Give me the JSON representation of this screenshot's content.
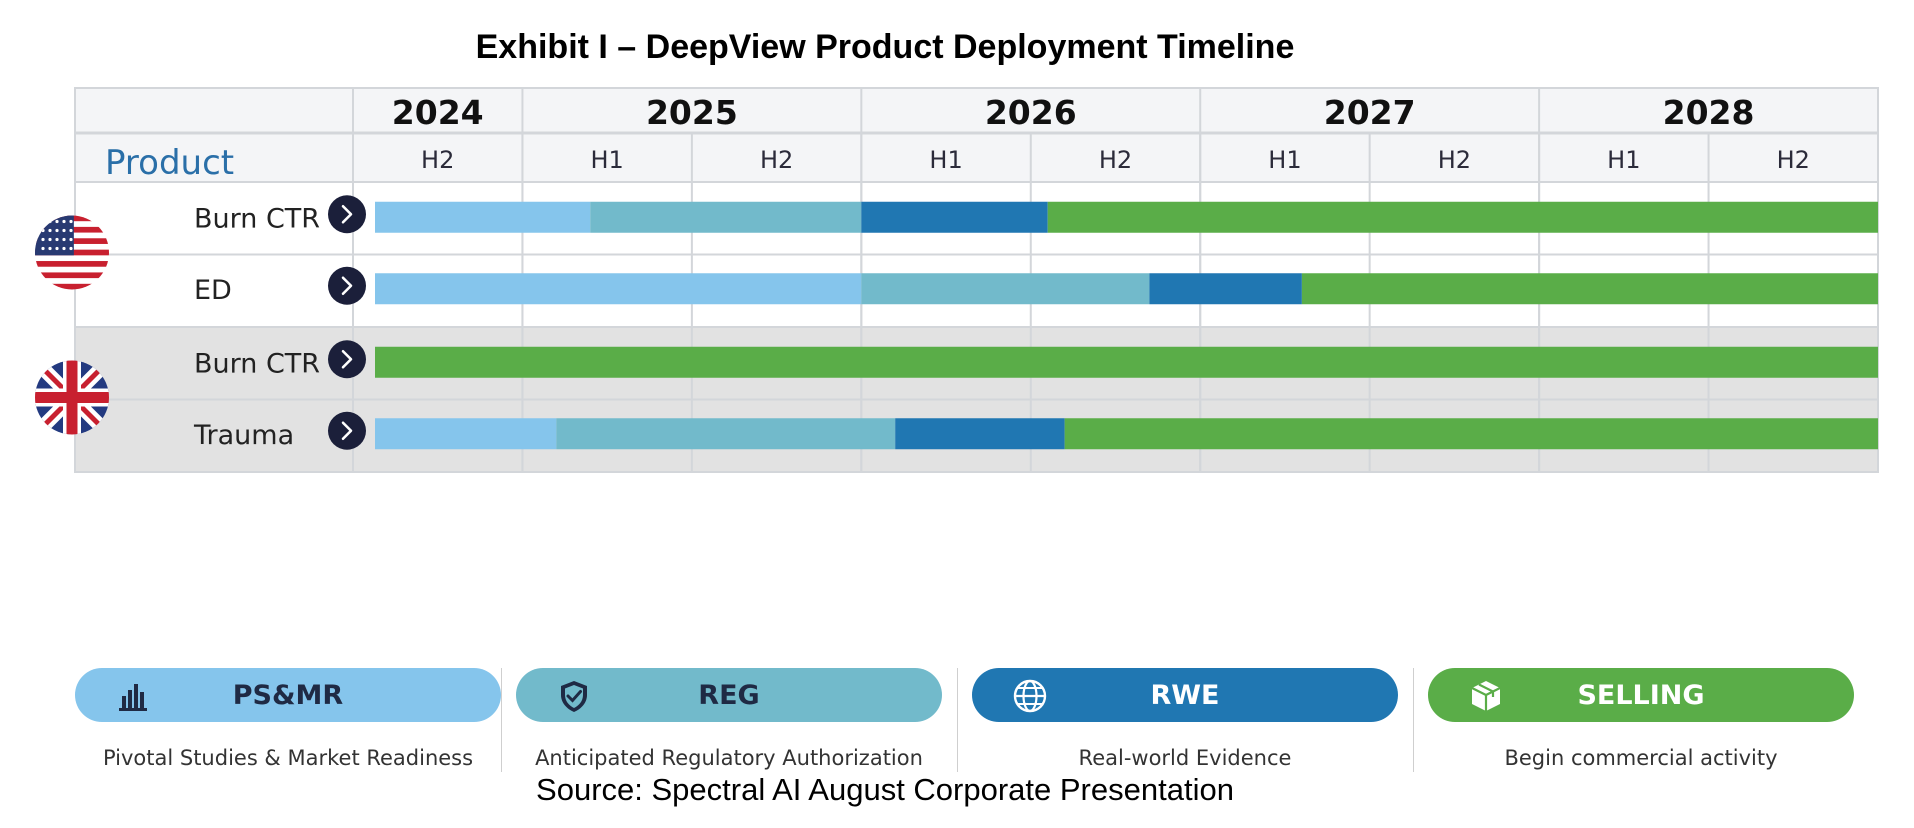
{
  "title": "Exhibit I – DeepView Product Deployment Timeline",
  "source": "Source: Spectral AI August Corporate Presentation",
  "chart_data": {
    "type": "gantt",
    "product_header": "Product",
    "years": [
      {
        "label": "2024",
        "halves": [
          "H2"
        ]
      },
      {
        "label": "2025",
        "halves": [
          "H1",
          "H2"
        ]
      },
      {
        "label": "2026",
        "halves": [
          "H1",
          "H2"
        ]
      },
      {
        "label": "2027",
        "halves": [
          "H1",
          "H2"
        ]
      },
      {
        "label": "2028",
        "halves": [
          "H1",
          "H2"
        ]
      }
    ],
    "period_start": "2024 H2",
    "period_units": "half-years elapsed since start of 2024 H2 (9 total)",
    "regions": [
      {
        "name": "United States",
        "flag": "us-flag-icon",
        "shaded": false,
        "rows": [
          {
            "label": "Burn CTR",
            "segments": [
              {
                "phase": "PS&MR",
                "start": 0.0,
                "end": 1.4
              },
              {
                "phase": "REG",
                "start": 1.4,
                "end": 3.0
              },
              {
                "phase": "RWE",
                "start": 3.0,
                "end": 4.1
              },
              {
                "phase": "SELLING",
                "start": 4.1,
                "end": 9.0
              }
            ]
          },
          {
            "label": "ED",
            "segments": [
              {
                "phase": "PS&MR",
                "start": 0.0,
                "end": 3.0
              },
              {
                "phase": "REG",
                "start": 3.0,
                "end": 4.7
              },
              {
                "phase": "RWE",
                "start": 4.7,
                "end": 5.6
              },
              {
                "phase": "SELLING",
                "start": 5.6,
                "end": 9.0
              }
            ]
          }
        ]
      },
      {
        "name": "United Kingdom",
        "flag": "uk-flag-icon",
        "shaded": true,
        "rows": [
          {
            "label": "Burn CTR",
            "segments": [
              {
                "phase": "SELLING",
                "start": 0.0,
                "end": 9.0
              }
            ]
          },
          {
            "label": "Trauma",
            "segments": [
              {
                "phase": "PS&MR",
                "start": 0.0,
                "end": 1.2
              },
              {
                "phase": "REG",
                "start": 1.2,
                "end": 3.2
              },
              {
                "phase": "RWE",
                "start": 3.2,
                "end": 4.2
              },
              {
                "phase": "SELLING",
                "start": 4.2,
                "end": 9.0
              }
            ]
          }
        ]
      }
    ],
    "legend": [
      {
        "key": "PS&MR",
        "label": "PS&MR",
        "description": "Pivotal Studies & Market Readiness",
        "color": "#85c5ec",
        "text_color": "#1f2a44",
        "icon": "bar-chart-icon"
      },
      {
        "key": "REG",
        "label": "REG",
        "description": "Anticipated Regulatory Authorization",
        "color": "#72bacb",
        "text_color": "#1f2a44",
        "icon": "shield-check-icon"
      },
      {
        "key": "RWE",
        "label": "RWE",
        "description": "Real-world Evidence",
        "color": "#2077b2",
        "text_color": "#ffffff",
        "icon": "globe-icon"
      },
      {
        "key": "SELLING",
        "label": "SELLING",
        "description": "Begin commercial activity",
        "color": "#5aad48",
        "text_color": "#ffffff",
        "icon": "box-icon"
      }
    ]
  },
  "colors": {
    "grid": "#d3d6da",
    "header_bg": "#f4f5f7",
    "shaded_row": "#e2e2e2",
    "arrow_bg": "#1b1f3a"
  }
}
